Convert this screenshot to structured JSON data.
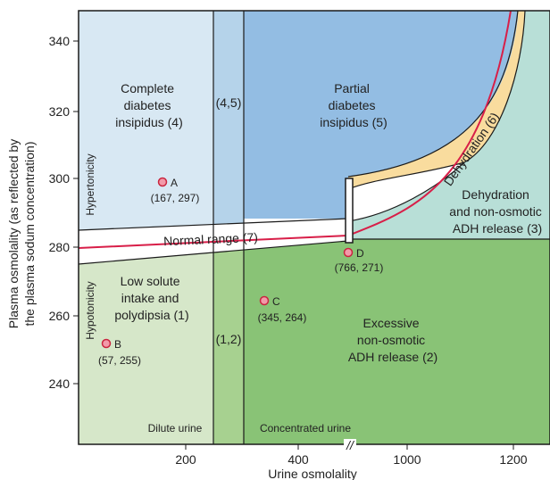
{
  "colors": {
    "complete_di": "#d8e8f3",
    "band_45": "#b5d3ea",
    "partial_di": "#93bde3",
    "dehydration": "#f9dc9e",
    "nonosmotic_dehydration": "#b8dfd7",
    "normal_band": "#ffffff",
    "low_solute": "#d6e7c9",
    "band_12": "#a7d190",
    "excessive_adh": "#89c376",
    "curve": "#d81e48",
    "point_fill": "#f29aa9",
    "point_stroke": "#c9263f",
    "border": "#1a1a1a"
  },
  "axes": {
    "x_title": "Urine osmolality",
    "y_title_line1": "Plasma osmolality (as reflected by",
    "y_title_line2": "the plasma sodum concentration)",
    "x_ticks": [
      {
        "label": "200"
      },
      {
        "label": "400"
      },
      {
        "label": "1000"
      },
      {
        "label": "1200"
      }
    ],
    "y_ticks": [
      {
        "label": "340"
      },
      {
        "label": "320"
      },
      {
        "label": "300"
      },
      {
        "label": "280"
      },
      {
        "label": "260"
      },
      {
        "label": "240"
      }
    ],
    "axis_break": "//"
  },
  "regions": {
    "complete_di": [
      "Complete",
      "diabetes",
      "insipidus (4)"
    ],
    "band_45": "(4,5)",
    "partial_di": [
      "Partial",
      "diabetes",
      "insipidus (5)"
    ],
    "dehydration": "Dehydration (6)",
    "nonosmotic": [
      "Dehydration",
      "and non-osmotic",
      "ADH release (3)"
    ],
    "normal_range": "Normal range (7)",
    "low_solute": [
      "Low solute",
      "intake and",
      "polydipsia (1)"
    ],
    "band_12": "(1,2)",
    "excessive_adh": [
      "Excessive",
      "non-osmotic",
      "ADH release (2)"
    ],
    "hypertonicity": "Hypertonicity",
    "hypotonicity": "Hypotonicity",
    "dilute_urine": "Dilute urine",
    "concentrated_urine": "Concentrated urine"
  },
  "points": [
    {
      "letter": "A",
      "coords": "(167, 297)"
    },
    {
      "letter": "B",
      "coords": "(57, 255)"
    },
    {
      "letter": "C",
      "coords": "(345, 264)"
    },
    {
      "letter": "D",
      "coords": "(766, 271)"
    }
  ]
}
